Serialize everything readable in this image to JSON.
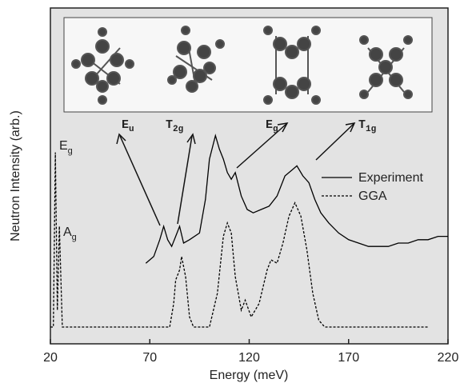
{
  "chart_data": {
    "type": "line",
    "x_label": "Energy (meV)",
    "y_label": "Neutron Intensity (arb.)",
    "xlim": [
      20,
      220
    ],
    "xticks": [
      20,
      70,
      120,
      170,
      220
    ],
    "ylim": [
      0,
      100
    ],
    "legend": "right",
    "series": [
      {
        "name": "Experiment",
        "color": "#000000",
        "dash": "solid",
        "x": [
          68,
          72,
          75,
          77,
          79,
          81,
          83,
          85,
          87,
          90,
          95,
          98,
          100,
          103,
          105,
          107,
          109,
          111,
          113,
          116,
          119,
          122,
          126,
          130,
          134,
          138,
          142,
          144,
          147,
          150,
          153,
          156,
          160,
          165,
          170,
          175,
          180,
          185,
          190,
          195,
          200,
          205,
          210,
          215,
          220
        ],
        "values": [
          24,
          26,
          31,
          35,
          31,
          29,
          32,
          35,
          30,
          31,
          33,
          43,
          55,
          62,
          58,
          55,
          51,
          49,
          51,
          44,
          40,
          39,
          40,
          41,
          44,
          50,
          52,
          53,
          50,
          48,
          43,
          39,
          36,
          33,
          31,
          30,
          29,
          29,
          29,
          30,
          30,
          31,
          31,
          32,
          32
        ]
      },
      {
        "name": "GGA",
        "color": "#000000",
        "dash": "dashed",
        "x": [
          20,
          21.5,
          22.5,
          23.5,
          24.5,
          26,
          30,
          80,
          82,
          83,
          85,
          86,
          88,
          90,
          92,
          100,
          104,
          107,
          109,
          111,
          113,
          116,
          118,
          121,
          125,
          129,
          131,
          134,
          137,
          140,
          143,
          146,
          149,
          152,
          155,
          158,
          210
        ],
        "values": [
          5,
          5,
          57,
          10,
          35,
          5,
          5,
          5,
          12,
          19,
          22,
          26,
          20,
          8,
          5,
          5,
          15,
          32,
          36,
          33,
          20,
          10,
          13,
          8,
          12,
          22,
          25,
          24,
          30,
          38,
          42,
          38,
          28,
          15,
          7,
          5,
          5
        ]
      }
    ],
    "peak_labels": [
      {
        "text": "E",
        "sub": "g"
      },
      {
        "text": "A",
        "sub": "g"
      }
    ],
    "mode_labels": [
      {
        "text": "E",
        "sub": "u"
      },
      {
        "text": "T",
        "sub": "2g"
      },
      {
        "text": "E",
        "sub": "g"
      },
      {
        "text": "T",
        "sub": "1g"
      }
    ]
  }
}
